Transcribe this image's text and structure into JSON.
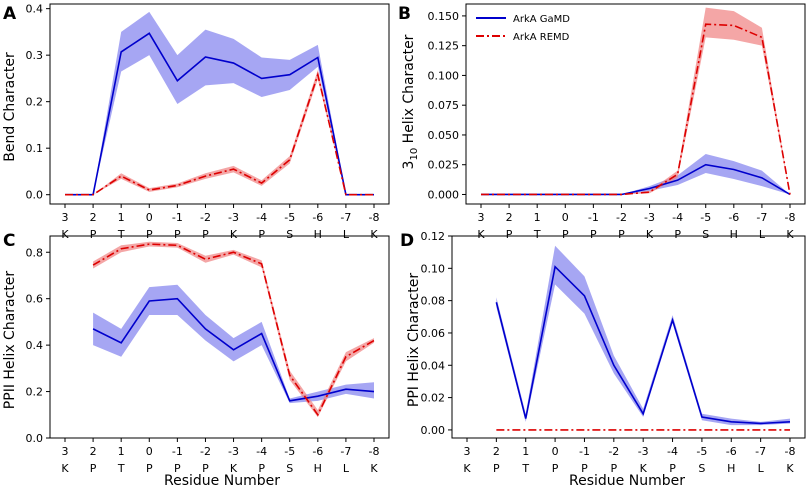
{
  "figure": {
    "xlabel": "Residue Number"
  },
  "legend": {
    "entries": [
      {
        "name": "ArkA GaMD",
        "color": "#0000cc",
        "style": "solid"
      },
      {
        "name": "ArkA REMD",
        "color": "#dd0000",
        "style": "dashdot"
      }
    ]
  },
  "colors": {
    "gamd": "#0000cc",
    "gamd_band": "#8080ee",
    "remd": "#dd0000",
    "remd_band": "#f08080"
  },
  "chart_data": [
    {
      "id": "A",
      "panel_label": "A",
      "type": "line",
      "ylabel": "Bend Character",
      "ylim": [
        -0.02,
        0.41
      ],
      "yticks": [
        0.0,
        0.1,
        0.2,
        0.3,
        0.4
      ],
      "ytick_labels": [
        "0.0",
        "0.1",
        "0.2",
        "0.3",
        "0.4"
      ],
      "categories": [
        "3",
        "2",
        "1",
        "0",
        "-1",
        "-2",
        "-3",
        "-4",
        "-5",
        "-6",
        "-7",
        "-8"
      ],
      "residues": [
        "K",
        "P",
        "T",
        "P",
        "P",
        "P",
        "K",
        "P",
        "S",
        "H",
        "L",
        "K"
      ],
      "series": [
        {
          "name": "ArkA GaMD",
          "values": [
            0.0,
            0.0,
            0.307,
            0.347,
            0.245,
            0.296,
            0.283,
            0.25,
            0.258,
            0.295,
            0.0,
            0.0
          ],
          "lower": [
            0.0,
            0.0,
            0.265,
            0.3,
            0.195,
            0.235,
            0.24,
            0.21,
            0.225,
            0.275,
            0.0,
            0.0
          ],
          "upper": [
            0.0,
            0.0,
            0.35,
            0.393,
            0.3,
            0.355,
            0.335,
            0.295,
            0.29,
            0.322,
            0.0,
            0.0
          ]
        },
        {
          "name": "ArkA REMD",
          "values": [
            0.0,
            0.0,
            0.04,
            0.01,
            0.02,
            0.04,
            0.055,
            0.025,
            0.075,
            0.258,
            0.0,
            0.0
          ],
          "lower": [
            0.0,
            0.0,
            0.034,
            0.006,
            0.016,
            0.034,
            0.048,
            0.019,
            0.067,
            0.248,
            0.0,
            0.0
          ],
          "upper": [
            0.0,
            0.0,
            0.046,
            0.014,
            0.024,
            0.046,
            0.062,
            0.031,
            0.083,
            0.268,
            0.0,
            0.0
          ]
        }
      ]
    },
    {
      "id": "B",
      "panel_label": "B",
      "type": "line",
      "ylabel_main": "3",
      "ylabel_sub": "10",
      "ylabel_rest": " Helix Character",
      "ylim": [
        -0.008,
        0.16
      ],
      "yticks": [
        0.0,
        0.025,
        0.05,
        0.075,
        0.1,
        0.125,
        0.15
      ],
      "ytick_labels": [
        "0.000",
        "0.025",
        "0.050",
        "0.075",
        "0.100",
        "0.125",
        "0.150"
      ],
      "categories": [
        "3",
        "2",
        "1",
        "0",
        "-1",
        "-2",
        "-3",
        "-4",
        "-5",
        "-6",
        "-7",
        "-8"
      ],
      "residues": [
        "K",
        "P",
        "T",
        "P",
        "P",
        "P",
        "K",
        "P",
        "S",
        "H",
        "L",
        "K"
      ],
      "series": [
        {
          "name": "ArkA GaMD",
          "values": [
            0.0,
            0.0,
            0.0,
            0.0,
            0.0,
            0.0,
            0.005,
            0.012,
            0.025,
            0.021,
            0.014,
            0.0
          ],
          "lower": [
            0.0,
            0.0,
            0.0,
            0.0,
            0.0,
            0.0,
            0.003,
            0.008,
            0.018,
            0.013,
            0.007,
            0.0
          ],
          "upper": [
            0.0,
            0.0,
            0.0,
            0.0,
            0.0,
            0.0,
            0.007,
            0.016,
            0.034,
            0.028,
            0.02,
            0.0
          ]
        },
        {
          "name": "ArkA REMD",
          "values": [
            0.0,
            0.0,
            0.0,
            0.0,
            0.0,
            0.0,
            0.002,
            0.017,
            0.143,
            0.142,
            0.132,
            0.0
          ],
          "lower": [
            0.0,
            0.0,
            0.0,
            0.0,
            0.0,
            0.0,
            0.001,
            0.014,
            0.132,
            0.13,
            0.125,
            0.0
          ],
          "upper": [
            0.0,
            0.0,
            0.0,
            0.0,
            0.0,
            0.0,
            0.003,
            0.02,
            0.157,
            0.154,
            0.14,
            0.0
          ]
        }
      ]
    },
    {
      "id": "C",
      "panel_label": "C",
      "type": "line",
      "ylabel": "PPII Helix Character",
      "ylim": [
        0.0,
        0.87
      ],
      "yticks": [
        0.0,
        0.2,
        0.4,
        0.6,
        0.8
      ],
      "ytick_labels": [
        "0.0",
        "0.2",
        "0.4",
        "0.6",
        "0.8"
      ],
      "categories": [
        "3",
        "2",
        "1",
        "0",
        "-1",
        "-2",
        "-3",
        "-4",
        "-5",
        "-6",
        "-7",
        "-8"
      ],
      "residues": [
        "K",
        "P",
        "T",
        "P",
        "P",
        "P",
        "K",
        "P",
        "S",
        "H",
        "L",
        "K"
      ],
      "series": [
        {
          "name": "ArkA GaMD",
          "values": [
            null,
            0.47,
            0.41,
            0.59,
            0.6,
            0.47,
            0.38,
            0.45,
            0.16,
            0.18,
            0.21,
            0.2
          ],
          "lower": [
            null,
            0.4,
            0.35,
            0.53,
            0.53,
            0.42,
            0.33,
            0.4,
            0.15,
            0.16,
            0.19,
            0.17
          ],
          "upper": [
            null,
            0.54,
            0.47,
            0.65,
            0.66,
            0.53,
            0.43,
            0.5,
            0.17,
            0.2,
            0.23,
            0.24
          ]
        },
        {
          "name": "ArkA REMD",
          "values": [
            null,
            0.745,
            0.815,
            0.835,
            0.83,
            0.77,
            0.8,
            0.75,
            0.27,
            0.1,
            0.35,
            0.42
          ],
          "lower": [
            null,
            0.73,
            0.8,
            0.825,
            0.82,
            0.755,
            0.79,
            0.735,
            0.25,
            0.09,
            0.33,
            0.41
          ],
          "upper": [
            null,
            0.76,
            0.83,
            0.845,
            0.84,
            0.785,
            0.81,
            0.765,
            0.29,
            0.12,
            0.37,
            0.43
          ]
        }
      ]
    },
    {
      "id": "D",
      "panel_label": "D",
      "type": "line",
      "ylabel": "PPI Helix Character",
      "ylim": [
        -0.005,
        0.12
      ],
      "yticks": [
        0.0,
        0.02,
        0.04,
        0.06,
        0.08,
        0.1,
        0.12
      ],
      "ytick_labels": [
        "0.00",
        "0.02",
        "0.04",
        "0.06",
        "0.08",
        "0.10",
        "0.12"
      ],
      "categories": [
        "3",
        "2",
        "1",
        "0",
        "-1",
        "-2",
        "-3",
        "-4",
        "-5",
        "-6",
        "-7",
        "-8"
      ],
      "residues": [
        "K",
        "P",
        "T",
        "P",
        "P",
        "P",
        "K",
        "P",
        "S",
        "H",
        "L",
        "K"
      ],
      "series": [
        {
          "name": "ArkA GaMD",
          "values": [
            null,
            0.079,
            0.007,
            0.101,
            0.083,
            0.04,
            0.01,
            0.068,
            0.008,
            0.005,
            0.004,
            0.005
          ],
          "lower": [
            null,
            0.076,
            0.005,
            0.09,
            0.072,
            0.035,
            0.008,
            0.066,
            0.006,
            0.003,
            0.003,
            0.004
          ],
          "upper": [
            null,
            0.082,
            0.01,
            0.114,
            0.095,
            0.046,
            0.013,
            0.071,
            0.01,
            0.007,
            0.005,
            0.007
          ]
        },
        {
          "name": "ArkA REMD",
          "values": [
            null,
            0.0,
            0.0,
            0.0,
            0.0,
            0.0,
            0.0,
            0.0,
            0.0,
            0.0,
            0.0,
            0.0
          ],
          "lower": [
            null,
            0.0,
            0.0,
            0.0,
            0.0,
            0.0,
            0.0,
            0.0,
            0.0,
            0.0,
            0.0,
            0.0
          ],
          "upper": [
            null,
            0.0,
            0.0,
            0.0,
            0.0,
            0.0,
            0.0,
            0.0,
            0.0,
            0.0,
            0.0,
            0.0
          ]
        }
      ]
    }
  ]
}
